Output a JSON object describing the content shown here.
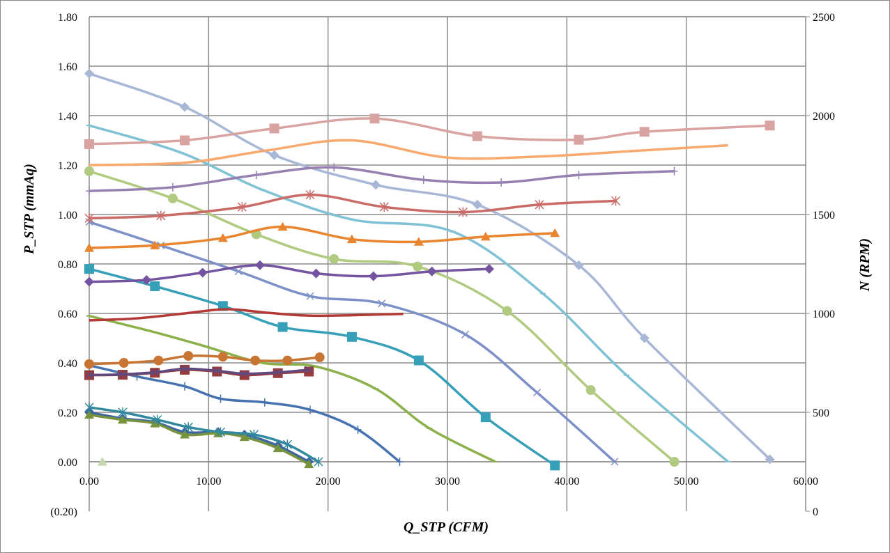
{
  "chart_data": {
    "type": "line",
    "xlabel": "Q_STP (CFM)",
    "ylabel": "P_STP (mmAq)",
    "y2label": "N (RPM)",
    "xlim": [
      0,
      60
    ],
    "ylim": [
      -0.2,
      1.8
    ],
    "y2lim": [
      0,
      2500
    ],
    "grid": true,
    "legend": "none",
    "x_ticks": [
      "0.00",
      "10.00",
      "20.00",
      "30.00",
      "40.00",
      "50.00",
      "60.00"
    ],
    "y_ticks": [
      "(0.20)",
      "0.00",
      "0.20",
      "0.40",
      "0.60",
      "0.80",
      "1.00",
      "1.20",
      "1.40",
      "1.60",
      "1.80"
    ],
    "y2_ticks": [
      "0",
      "500",
      "1000",
      "1500",
      "2000",
      "2500"
    ],
    "negative_tick_color": "#FF0000",
    "series": [
      {
        "axis": "left",
        "color": "#A9B7D7",
        "marker": "diamond",
        "x": [
          0,
          8,
          15.5,
          24,
          32.5,
          41,
          46.5,
          57
        ],
        "y": [
          1.57,
          1.435,
          1.24,
          1.12,
          1.04,
          0.795,
          0.5,
          0.01
        ]
      },
      {
        "axis": "left",
        "color": "#7FC2D5",
        "marker": "dash",
        "x": [
          0,
          7.7,
          14.5,
          22,
          30.5,
          38,
          45,
          53.5
        ],
        "y": [
          1.36,
          1.25,
          1.1,
          0.98,
          0.93,
          0.68,
          0.35,
          0.0
        ]
      },
      {
        "axis": "left",
        "color": "#B0CB80",
        "marker": "circle",
        "x": [
          0,
          7,
          14,
          20.5,
          27.5,
          35,
          42,
          49
        ],
        "y": [
          1.175,
          1.065,
          0.92,
          0.82,
          0.79,
          0.61,
          0.29,
          0.0
        ]
      },
      {
        "axis": "left",
        "color": "#7D90C8",
        "marker": "x",
        "x": [
          0,
          6,
          12.5,
          18.5,
          24.5,
          31.5,
          37.5,
          44
        ],
        "y": [
          0.97,
          0.875,
          0.77,
          0.67,
          0.64,
          0.515,
          0.28,
          0.0
        ]
      },
      {
        "axis": "left",
        "color": "#35A0B8",
        "marker": "square",
        "x": [
          0,
          5.5,
          11.2,
          16.2,
          22,
          27.6,
          33.2,
          39
        ],
        "y": [
          0.78,
          0.71,
          0.63,
          0.545,
          0.505,
          0.41,
          0.18,
          -0.015
        ]
      },
      {
        "axis": "left",
        "color": "#8CB04A",
        "marker": "dash",
        "x": [
          0,
          5,
          9.5,
          14.5,
          19,
          24,
          28.5,
          34
        ],
        "y": [
          0.59,
          0.53,
          0.47,
          0.4,
          0.385,
          0.295,
          0.135,
          0.0
        ]
      },
      {
        "axis": "left",
        "color": "#4673B0",
        "marker": "plus",
        "x": [
          0,
          4,
          8,
          11,
          14.7,
          18.5,
          22.5,
          26
        ],
        "y": [
          0.39,
          0.345,
          0.305,
          0.255,
          0.24,
          0.21,
          0.13,
          0.0
        ]
      },
      {
        "axis": "left",
        "color": "#3D66A0",
        "marker": "diamond",
        "x": [
          0,
          2.8,
          5.5,
          8,
          10.8,
          13,
          15.8,
          18.4
        ],
        "y": [
          0.2,
          0.175,
          0.16,
          0.12,
          0.12,
          0.11,
          0.065,
          0.0
        ]
      },
      {
        "axis": "left",
        "color": "#77933C",
        "marker": "triangle",
        "x": [
          0,
          2.8,
          5.5,
          8,
          10.8,
          13,
          15.8,
          18.4
        ],
        "y": [
          0.19,
          0.17,
          0.155,
          0.11,
          0.115,
          0.1,
          0.055,
          -0.01
        ]
      },
      {
        "axis": "left",
        "color": "#31899F",
        "marker": "star",
        "x": [
          0,
          2.8,
          5.7,
          8.3,
          11,
          13.8,
          16.6,
          19.2
        ],
        "y": [
          0.22,
          0.2,
          0.17,
          0.14,
          0.12,
          0.11,
          0.07,
          0.0
        ]
      },
      {
        "axis": "left",
        "color": "#C6D8AE",
        "marker": "triangle",
        "x": [
          1.1
        ],
        "y": [
          0.0
        ]
      },
      {
        "axis": "right",
        "color": "#D9A3A1",
        "marker": "square",
        "x": [
          0,
          8,
          15.5,
          23.9,
          32.5,
          41,
          46.5,
          57
        ],
        "y": [
          1856,
          1875,
          1935,
          1985,
          1896,
          1878,
          1918,
          1950
        ]
      },
      {
        "axis": "right",
        "color": "#F9A86E",
        "marker": "none",
        "x": [
          0,
          8,
          15,
          22,
          30,
          38,
          45,
          53.5
        ],
        "y": [
          1750,
          1762,
          1825,
          1875,
          1788,
          1794,
          1819,
          1850
        ]
      },
      {
        "axis": "right",
        "color": "#9580B0",
        "marker": "plus",
        "x": [
          0,
          7,
          14,
          20.5,
          28,
          34.5,
          41,
          49
        ],
        "y": [
          1619,
          1638,
          1700,
          1738,
          1675,
          1662,
          1700,
          1719
        ]
      },
      {
        "axis": "right",
        "color": "#CB6B68",
        "marker": "star",
        "x": [
          0,
          6,
          12.8,
          18.5,
          24.7,
          31.3,
          37.7,
          44.1
        ],
        "y": [
          1481,
          1494,
          1538,
          1600,
          1538,
          1512,
          1550,
          1569
        ]
      },
      {
        "axis": "right",
        "color": "#E9852F",
        "marker": "triangle",
        "x": [
          0,
          5.5,
          11.2,
          16.2,
          22,
          27.6,
          33.2,
          39
        ],
        "y": [
          1331,
          1344,
          1381,
          1438,
          1375,
          1362,
          1388,
          1406
        ]
      },
      {
        "axis": "right",
        "color": "#7454A0",
        "marker": "diamond",
        "x": [
          0,
          4.8,
          9.5,
          14.3,
          19,
          23.8,
          28.7,
          33.5
        ],
        "y": [
          1160,
          1169,
          1206,
          1244,
          1202,
          1188,
          1212,
          1225
        ]
      },
      {
        "axis": "right",
        "color": "#B33A37",
        "marker": "none",
        "x": [
          0,
          4,
          8,
          11.5,
          15,
          19,
          26.3
        ],
        "y": [
          965,
          975,
          1000,
          1021,
          1003,
          988,
          998
        ]
      },
      {
        "axis": "right",
        "color": "#C87533",
        "marker": "circle",
        "x": [
          0,
          2.9,
          5.8,
          8.3,
          11.2,
          13.9,
          16.6,
          19.3
        ],
        "y": [
          744,
          750,
          762,
          785,
          781,
          762,
          762,
          778
        ]
      },
      {
        "axis": "right",
        "color": "#9A3B3A",
        "marker": "square",
        "x": [
          0,
          2.8,
          5.5,
          8,
          10.7,
          13,
          15.8,
          18.4
        ],
        "y": [
          688,
          690,
          700,
          715,
          706,
          688,
          698,
          706
        ]
      },
      {
        "axis": "right",
        "color": "#60497E",
        "marker": "x",
        "x": [
          0,
          2.8,
          5.5,
          8,
          10.7,
          13,
          15.8,
          18.4
        ],
        "y": [
          688,
          692,
          702,
          720,
          710,
          695,
          702,
          715
        ]
      }
    ]
  }
}
